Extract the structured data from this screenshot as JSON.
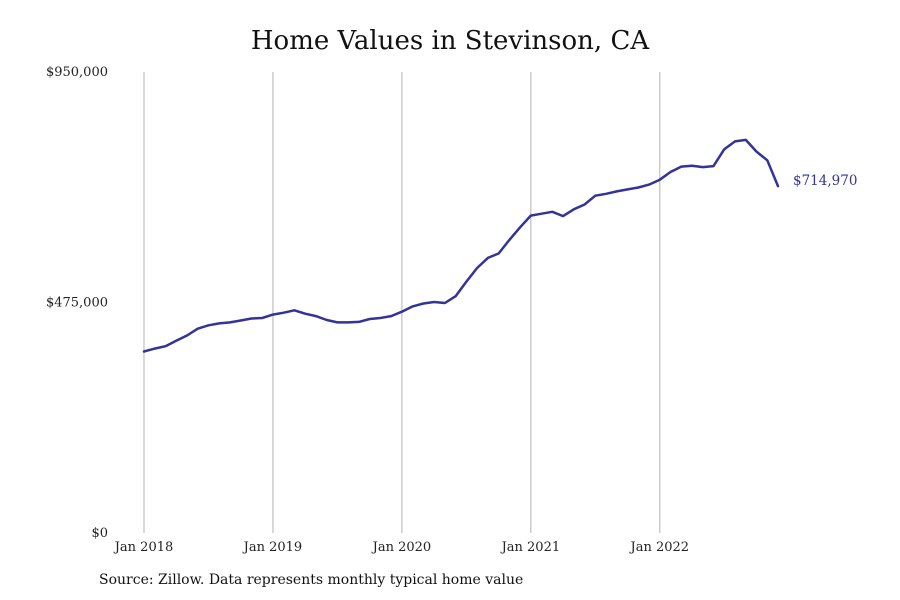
{
  "chart_data": {
    "type": "line",
    "title": "Home Values in Stevinson, CA",
    "source": "Source: Zillow. Data represents monthly typical home value",
    "ylim": [
      0,
      950000
    ],
    "xlim": [
      "2018-01",
      "2022-12"
    ],
    "y_ticks": [
      {
        "value": 0,
        "label": "$0"
      },
      {
        "value": 475000,
        "label": "$475,000"
      },
      {
        "value": 950000,
        "label": "$950,000"
      }
    ],
    "x_ticks": [
      {
        "date": "2018-01",
        "label": "Jan 2018"
      },
      {
        "date": "2019-01",
        "label": "Jan 2019"
      },
      {
        "date": "2020-01",
        "label": "Jan 2020"
      },
      {
        "date": "2021-01",
        "label": "Jan 2021"
      },
      {
        "date": "2022-01",
        "label": "Jan 2022"
      }
    ],
    "grid": "vertical",
    "line_color": "#333399",
    "end_label": "$714,970",
    "series": [
      {
        "x": [
          "2018-01",
          "2018-02",
          "2018-03",
          "2018-04",
          "2018-05",
          "2018-06",
          "2018-07",
          "2018-08",
          "2018-09",
          "2018-10",
          "2018-11",
          "2018-12",
          "2019-01",
          "2019-02",
          "2019-03",
          "2019-04",
          "2019-05",
          "2019-06",
          "2019-07",
          "2019-08",
          "2019-09",
          "2019-10",
          "2019-11",
          "2019-12",
          "2020-01",
          "2020-02",
          "2020-03",
          "2020-04",
          "2020-05",
          "2020-06",
          "2020-07",
          "2020-08",
          "2020-09",
          "2020-10",
          "2020-11",
          "2020-12",
          "2021-01",
          "2021-02",
          "2021-03",
          "2021-04",
          "2021-05",
          "2021-06",
          "2021-07",
          "2021-08",
          "2021-09",
          "2021-10",
          "2021-11",
          "2021-12",
          "2022-01",
          "2022-02",
          "2022-03",
          "2022-04",
          "2022-05",
          "2022-06",
          "2022-07",
          "2022-08",
          "2022-09",
          "2022-10",
          "2022-11",
          "2022-12"
        ],
        "y": [
          374000,
          380000,
          385000,
          396000,
          407000,
          421000,
          428000,
          432000,
          434000,
          438000,
          442000,
          443000,
          450000,
          454000,
          459000,
          452000,
          447000,
          439000,
          434000,
          434000,
          435000,
          441000,
          443000,
          447000,
          456000,
          467000,
          473000,
          476000,
          474000,
          488000,
          518000,
          546000,
          567000,
          576000,
          604000,
          630000,
          654000,
          658000,
          662000,
          653000,
          667000,
          677000,
          695000,
          699000,
          704000,
          708000,
          712000,
          718000,
          728000,
          744000,
          755000,
          757000,
          754000,
          756000,
          791000,
          807000,
          810000,
          786000,
          768000,
          714970
        ]
      }
    ]
  }
}
